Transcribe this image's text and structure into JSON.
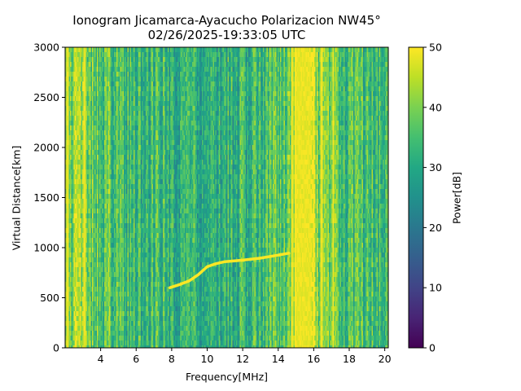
{
  "chart_data": {
    "type": "heatmap",
    "title": "Ionogram Jicamarca-Ayacucho Polarizacion NW45°",
    "subtitle": "02/26/2025-19:33:05 UTC",
    "xlabel": "Frequency[MHz]",
    "ylabel": "Virtual Distance[km]",
    "colorbar_label": "Power[dB]",
    "colormap": "viridis",
    "xlim": [
      2.0,
      20.2
    ],
    "ylim": [
      0,
      3000
    ],
    "clim": [
      0,
      50
    ],
    "x_ticks": [
      4,
      6,
      8,
      10,
      12,
      14,
      16,
      18,
      20
    ],
    "x_tick_labels": [
      "4",
      "6",
      "8",
      "10",
      "12",
      "14",
      "16",
      "18",
      "20"
    ],
    "y_ticks": [
      0,
      500,
      1000,
      1500,
      2000,
      2500,
      3000
    ],
    "y_tick_labels": [
      "0",
      "500",
      "1000",
      "1500",
      "2000",
      "2500",
      "3000"
    ],
    "colorbar_ticks": [
      0,
      10,
      20,
      30,
      40,
      50
    ],
    "colorbar_tick_labels": [
      "0",
      "10",
      "20",
      "30",
      "40",
      "50"
    ],
    "background_power_db": [
      [
        2.0,
        34
      ],
      [
        2.5,
        42
      ],
      [
        3.0,
        39
      ],
      [
        4.0,
        36
      ],
      [
        5.0,
        35
      ],
      [
        6.0,
        33
      ],
      [
        8.0,
        32
      ],
      [
        10.0,
        31
      ],
      [
        12.0,
        32
      ],
      [
        14.0,
        36
      ],
      [
        14.7,
        42
      ],
      [
        15.0,
        50
      ],
      [
        15.8,
        50
      ],
      [
        16.3,
        38
      ],
      [
        18.0,
        34
      ],
      [
        20.2,
        33
      ]
    ],
    "strong_bands_mhz": [
      [
        2.1,
        2.2
      ],
      [
        3.0,
        3.15
      ],
      [
        14.7,
        14.85
      ],
      [
        15.0,
        15.8
      ],
      [
        16.35,
        16.5
      ],
      [
        17.05,
        17.15
      ]
    ],
    "trace": {
      "name": "",
      "power_db": 50,
      "points": [
        [
          7.9,
          600
        ],
        [
          8.5,
          635
        ],
        [
          9.0,
          670
        ],
        [
          9.5,
          730
        ],
        [
          10.0,
          810
        ],
        [
          10.5,
          840
        ],
        [
          11.0,
          860
        ],
        [
          12.0,
          875
        ],
        [
          13.0,
          895
        ],
        [
          14.0,
          925
        ],
        [
          14.6,
          945
        ]
      ]
    }
  }
}
